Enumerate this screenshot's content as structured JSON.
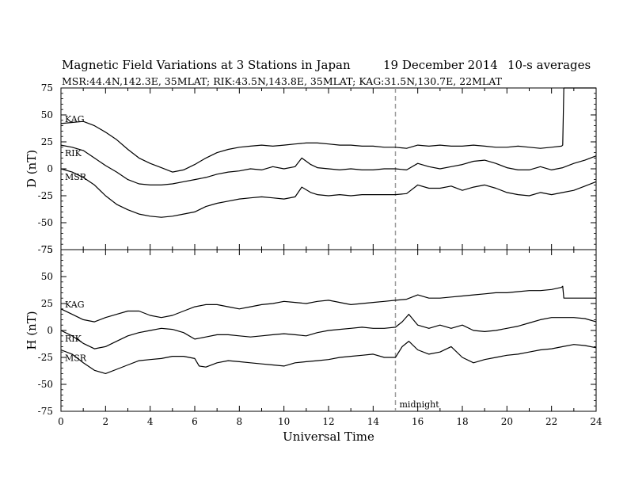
{
  "header": {
    "title": "Magnetic Field Variations at 3 Stations in Japan",
    "date": "19 December 2014",
    "averaging": "10-s averages",
    "stations_line": "MSR:44.4N,142.3E, 35MLAT;  RIK:43.5N,143.8E, 35MLAT;  KAG:31.5N,130.7E, 22MLAT"
  },
  "chart_data": [
    {
      "type": "line",
      "panel": "D",
      "ylabel": "D (nT)",
      "ylim": [
        -75,
        75
      ],
      "yticks": [
        75,
        50,
        25,
        0,
        -25,
        -50,
        -75
      ],
      "xlim": [
        0,
        24
      ],
      "xticks": [
        0,
        2,
        4,
        6,
        8,
        10,
        12,
        14,
        16,
        18,
        20,
        22,
        24
      ],
      "marker_line": {
        "x": 15,
        "style": "dashed"
      },
      "series": [
        {
          "name": "KAG",
          "x": [
            0,
            0.5,
            1,
            1.5,
            2,
            2.5,
            3,
            3.5,
            4,
            4.5,
            5,
            5.5,
            6,
            6.5,
            7,
            7.5,
            8,
            8.5,
            9,
            9.5,
            10,
            10.5,
            11,
            11.5,
            12,
            12.5,
            13,
            13.5,
            14,
            14.5,
            15,
            15.5,
            16,
            16.5,
            17,
            17.5,
            18,
            18.5,
            19,
            19.5,
            20,
            20.5,
            21,
            21.5,
            22,
            22.45,
            22.5,
            22.55,
            24
          ],
          "y": [
            42,
            43,
            44,
            40,
            34,
            27,
            18,
            10,
            5,
            1,
            -3,
            -1,
            4,
            10,
            15,
            18,
            20,
            21,
            22,
            21,
            22,
            23,
            24,
            24,
            23,
            22,
            22,
            21,
            21,
            20,
            20,
            19,
            22,
            21,
            22,
            21,
            21,
            22,
            21,
            20,
            20,
            21,
            20,
            19,
            20,
            21,
            22,
            75,
            75
          ]
        },
        {
          "name": "RIK",
          "x": [
            0,
            0.5,
            1,
            1.5,
            2,
            2.5,
            3,
            3.5,
            4,
            4.5,
            5,
            5.5,
            6,
            6.5,
            7,
            7.5,
            8,
            8.5,
            9,
            9.5,
            10,
            10.5,
            10.8,
            11.2,
            11.5,
            12,
            12.5,
            13,
            13.5,
            14,
            14.5,
            15,
            15.5,
            16,
            16.5,
            17,
            17.5,
            18,
            18.5,
            19,
            19.5,
            20,
            20.5,
            21,
            21.5,
            22,
            22.5,
            23,
            23.5,
            24
          ],
          "y": [
            22,
            20,
            17,
            10,
            3,
            -3,
            -10,
            -14,
            -15,
            -15,
            -14,
            -12,
            -10,
            -8,
            -5,
            -3,
            -2,
            0,
            -1,
            2,
            0,
            2,
            10,
            4,
            1,
            0,
            -1,
            0,
            -1,
            -1,
            0,
            0,
            -1,
            5,
            2,
            0,
            2,
            4,
            7,
            8,
            5,
            1,
            -1,
            -1,
            2,
            -1,
            1,
            5,
            8,
            12
          ]
        },
        {
          "name": "MSR",
          "x": [
            0,
            0.5,
            1,
            1.5,
            2,
            2.5,
            3,
            3.5,
            4,
            4.5,
            5,
            5.5,
            6,
            6.2,
            6.5,
            7,
            7.5,
            8,
            8.5,
            9,
            9.5,
            10,
            10.5,
            10.8,
            11.2,
            11.5,
            12,
            12.5,
            13,
            13.5,
            14,
            14.5,
            15,
            15.5,
            16,
            16.5,
            17,
            17.5,
            18,
            18.5,
            19,
            19.5,
            20,
            20.5,
            21,
            21.5,
            22,
            22.5,
            23,
            23.5,
            24
          ],
          "y": [
            0,
            -3,
            -8,
            -15,
            -25,
            -33,
            -38,
            -42,
            -44,
            -45,
            -44,
            -42,
            -40,
            -38,
            -35,
            -32,
            -30,
            -28,
            -27,
            -26,
            -27,
            -28,
            -26,
            -17,
            -22,
            -24,
            -25,
            -24,
            -25,
            -24,
            -24,
            -24,
            -24,
            -23,
            -15,
            -18,
            -18,
            -16,
            -20,
            -17,
            -15,
            -18,
            -22,
            -24,
            -25,
            -22,
            -24,
            -22,
            -20,
            -16,
            -12
          ]
        }
      ]
    },
    {
      "type": "line",
      "panel": "H",
      "ylabel": "H (nT)",
      "xlabel": "Universal Time",
      "ylim": [
        -75,
        75
      ],
      "yticks": [
        75,
        50,
        25,
        0,
        -25,
        -50,
        -75
      ],
      "xlim": [
        0,
        24
      ],
      "xticks": [
        0,
        2,
        4,
        6,
        8,
        10,
        12,
        14,
        16,
        18,
        20,
        22,
        24
      ],
      "marker_line": {
        "x": 15,
        "style": "dashed",
        "label": "midnight"
      },
      "series": [
        {
          "name": "KAG",
          "x": [
            0,
            0.5,
            1,
            1.5,
            2,
            2.5,
            3,
            3.5,
            4,
            4.5,
            5,
            5.5,
            6,
            6.5,
            7,
            7.5,
            8,
            8.5,
            9,
            9.5,
            10,
            10.5,
            11,
            11.5,
            12,
            12.5,
            13,
            13.5,
            14,
            14.5,
            15,
            15.5,
            16,
            16.5,
            17,
            17.5,
            18,
            18.5,
            19,
            19.5,
            20,
            20.5,
            21,
            21.5,
            22,
            22.45,
            22.5,
            22.55,
            24
          ],
          "y": [
            20,
            15,
            10,
            8,
            12,
            15,
            18,
            18,
            14,
            12,
            14,
            18,
            22,
            24,
            24,
            22,
            20,
            22,
            24,
            25,
            27,
            26,
            25,
            27,
            28,
            26,
            24,
            25,
            26,
            27,
            28,
            29,
            33,
            30,
            30,
            31,
            32,
            33,
            34,
            35,
            35,
            36,
            37,
            37,
            38,
            40,
            41,
            30,
            30
          ]
        },
        {
          "name": "RIK",
          "x": [
            0,
            0.5,
            1,
            1.5,
            2,
            2.5,
            3,
            3.5,
            4,
            4.5,
            5,
            5.5,
            6,
            6.5,
            7,
            7.5,
            8,
            8.5,
            9,
            9.5,
            10,
            10.5,
            11,
            11.5,
            12,
            12.5,
            13,
            13.5,
            14,
            14.5,
            15,
            15.3,
            15.6,
            16,
            16.5,
            17,
            17.5,
            18,
            18.5,
            19,
            19.5,
            20,
            20.5,
            21,
            21.5,
            22,
            22.5,
            23,
            23.5,
            24
          ],
          "y": [
            0,
            -5,
            -12,
            -17,
            -15,
            -10,
            -5,
            -2,
            0,
            2,
            1,
            -2,
            -8,
            -6,
            -4,
            -4,
            -5,
            -6,
            -5,
            -4,
            -3,
            -4,
            -5,
            -2,
            0,
            1,
            2,
            3,
            2,
            2,
            3,
            8,
            15,
            5,
            2,
            5,
            2,
            5,
            0,
            -1,
            0,
            2,
            4,
            7,
            10,
            12,
            12,
            12,
            11,
            8
          ]
        },
        {
          "name": "MSR",
          "x": [
            0,
            0.5,
            1,
            1.5,
            2,
            2.5,
            3,
            3.5,
            4,
            4.5,
            5,
            5.5,
            6,
            6.2,
            6.5,
            7,
            7.5,
            8,
            8.5,
            9,
            9.5,
            10,
            10.5,
            11,
            11.5,
            12,
            12.5,
            13,
            13.5,
            14,
            14.5,
            15,
            15.3,
            15.6,
            16,
            16.5,
            17,
            17.5,
            18,
            18.5,
            19,
            19.5,
            20,
            20.5,
            21,
            21.5,
            22,
            22.5,
            23,
            23.5,
            24
          ],
          "y": [
            -18,
            -22,
            -30,
            -37,
            -40,
            -36,
            -32,
            -28,
            -27,
            -26,
            -24,
            -24,
            -26,
            -33,
            -34,
            -30,
            -28,
            -29,
            -30,
            -31,
            -32,
            -33,
            -30,
            -29,
            -28,
            -27,
            -25,
            -24,
            -23,
            -22,
            -25,
            -25,
            -15,
            -10,
            -18,
            -22,
            -20,
            -15,
            -25,
            -30,
            -27,
            -25,
            -23,
            -22,
            -20,
            -18,
            -17,
            -15,
            -13,
            -14,
            -16
          ]
        }
      ]
    }
  ]
}
